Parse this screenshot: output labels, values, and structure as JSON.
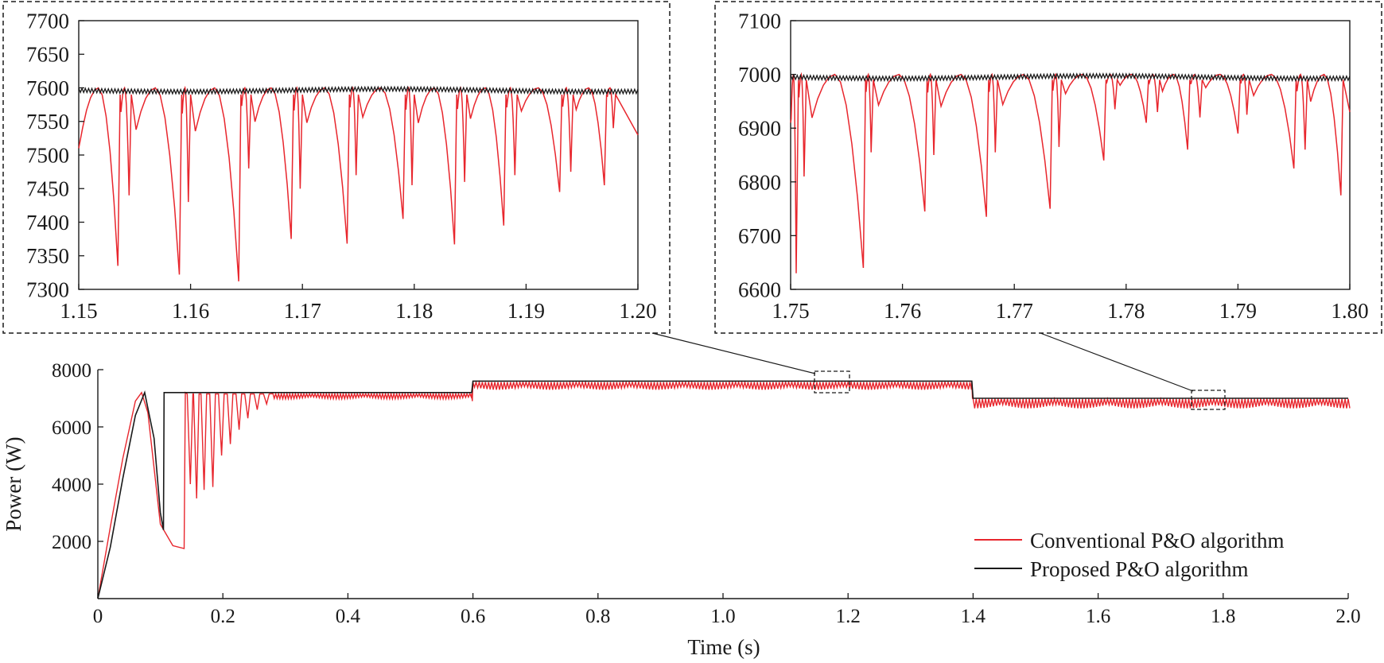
{
  "colors": {
    "conventional": "#e8262d",
    "proposed": "#1a1a1a",
    "axis": "#1a1a1a",
    "background": "#ffffff"
  },
  "chart_data": [
    {
      "id": "main",
      "type": "line",
      "title": "",
      "xlabel": "Time (s)",
      "ylabel": "Power (W)",
      "xlim": [
        0,
        2.0
      ],
      "ylim": [
        0,
        8000
      ],
      "xticks": [
        "0",
        "0.2",
        "0.4",
        "0.6",
        "0.8",
        "1.0",
        "1.2",
        "1.4",
        "1.6",
        "1.8",
        "2.0"
      ],
      "yticks": [
        "2000",
        "4000",
        "6000",
        "8000"
      ],
      "grid": false,
      "legend_position": "bottom-right",
      "series": [
        {
          "name": "Conventional P&O algorithm",
          "color": "#e8262d",
          "x": [
            0,
            0.02,
            0.04,
            0.06,
            0.07,
            0.08,
            0.1,
            0.12,
            0.138,
            0.14,
            0.16,
            0.2,
            0.3,
            0.5,
            0.598,
            0.6,
            0.8,
            1.0,
            1.2,
            1.398,
            1.4,
            1.6,
            1.8,
            2.0
          ],
          "y": [
            0,
            2500,
            4900,
            6900,
            7200,
            6500,
            2600,
            1850,
            1750,
            7200,
            7150,
            7150,
            7160,
            7170,
            7170,
            7560,
            7560,
            7560,
            7560,
            7560,
            6980,
            6980,
            6980,
            6980
          ],
          "dips": [
            {
              "x": 0.148,
              "y": 4000
            },
            {
              "x": 0.158,
              "y": 3500
            },
            {
              "x": 0.17,
              "y": 3800
            },
            {
              "x": 0.184,
              "y": 3900
            },
            {
              "x": 0.198,
              "y": 5000
            },
            {
              "x": 0.212,
              "y": 5400
            },
            {
              "x": 0.226,
              "y": 5900
            },
            {
              "x": 0.24,
              "y": 6300
            },
            {
              "x": 0.255,
              "y": 6600
            },
            {
              "x": 0.27,
              "y": 6800
            }
          ]
        },
        {
          "name": "Proposed P&O algorithm",
          "color": "#1a1a1a",
          "x": [
            0,
            0.02,
            0.04,
            0.06,
            0.075,
            0.09,
            0.1,
            0.105,
            0.106,
            0.598,
            0.6,
            1.398,
            1.4,
            2.0
          ],
          "y": [
            0,
            1800,
            4200,
            6400,
            7200,
            5600,
            3000,
            2400,
            7200,
            7200,
            7600,
            7600,
            7000,
            7000
          ]
        }
      ]
    },
    {
      "id": "zoom-1",
      "type": "line",
      "title": "",
      "xlim": [
        1.15,
        1.2
      ],
      "ylim": [
        7300,
        7700
      ],
      "xticks": [
        "1.15",
        "1.16",
        "1.17",
        "1.18",
        "1.19",
        "1.20"
      ],
      "yticks": [
        "7300",
        "7350",
        "7400",
        "7450",
        "7500",
        "7550",
        "7600",
        "7650",
        "7700"
      ],
      "series": [
        {
          "name": "Conventional P&O algorithm",
          "color": "#e8262d",
          "max": 7600,
          "dip_minima": [
            {
              "x": 1.1535,
              "y": 7335
            },
            {
              "x": 1.1545,
              "y": 7440
            },
            {
              "x": 1.159,
              "y": 7322
            },
            {
              "x": 1.1598,
              "y": 7430
            },
            {
              "x": 1.1643,
              "y": 7312
            },
            {
              "x": 1.1652,
              "y": 7480
            },
            {
              "x": 1.169,
              "y": 7375
            },
            {
              "x": 1.1698,
              "y": 7450
            },
            {
              "x": 1.174,
              "y": 7368
            },
            {
              "x": 1.1748,
              "y": 7470
            },
            {
              "x": 1.179,
              "y": 7405
            },
            {
              "x": 1.1798,
              "y": 7455
            },
            {
              "x": 1.1836,
              "y": 7367
            },
            {
              "x": 1.1845,
              "y": 7460
            },
            {
              "x": 1.188,
              "y": 7395
            },
            {
              "x": 1.189,
              "y": 7470
            },
            {
              "x": 1.193,
              "y": 7445
            },
            {
              "x": 1.194,
              "y": 7475
            },
            {
              "x": 1.197,
              "y": 7455
            },
            {
              "x": 1.1978,
              "y": 7540
            }
          ]
        },
        {
          "name": "Proposed P&O algorithm",
          "color": "#1a1a1a",
          "level": 7598
        }
      ]
    },
    {
      "id": "zoom-2",
      "type": "line",
      "title": "",
      "xlim": [
        1.75,
        1.8
      ],
      "ylim": [
        6600,
        7100
      ],
      "xticks": [
        "1.75",
        "1.76",
        "1.77",
        "1.78",
        "1.79",
        "1.80"
      ],
      "yticks": [
        "6600",
        "6700",
        "6800",
        "6900",
        "7000",
        "7100"
      ],
      "series": [
        {
          "name": "Conventional P&O algorithm",
          "color": "#e8262d",
          "max": 7000,
          "dip_minima": [
            {
              "x": 1.7505,
              "y": 6630
            },
            {
              "x": 1.7512,
              "y": 6810
            },
            {
              "x": 1.7565,
              "y": 6640
            },
            {
              "x": 1.7572,
              "y": 6855
            },
            {
              "x": 1.762,
              "y": 6745
            },
            {
              "x": 1.7628,
              "y": 6850
            },
            {
              "x": 1.7675,
              "y": 6735
            },
            {
              "x": 1.7683,
              "y": 6855
            },
            {
              "x": 1.7732,
              "y": 6750
            },
            {
              "x": 1.774,
              "y": 6865
            },
            {
              "x": 1.778,
              "y": 6840
            },
            {
              "x": 1.779,
              "y": 6935
            },
            {
              "x": 1.7818,
              "y": 6910
            },
            {
              "x": 1.7828,
              "y": 6930
            },
            {
              "x": 1.7855,
              "y": 6860
            },
            {
              "x": 1.7866,
              "y": 6920
            },
            {
              "x": 1.79,
              "y": 6890
            },
            {
              "x": 1.7908,
              "y": 6925
            },
            {
              "x": 1.795,
              "y": 6825
            },
            {
              "x": 1.796,
              "y": 6860
            },
            {
              "x": 1.7992,
              "y": 6775
            }
          ]
        },
        {
          "name": "Proposed P&O algorithm",
          "color": "#1a1a1a",
          "level": 6997
        }
      ]
    }
  ]
}
